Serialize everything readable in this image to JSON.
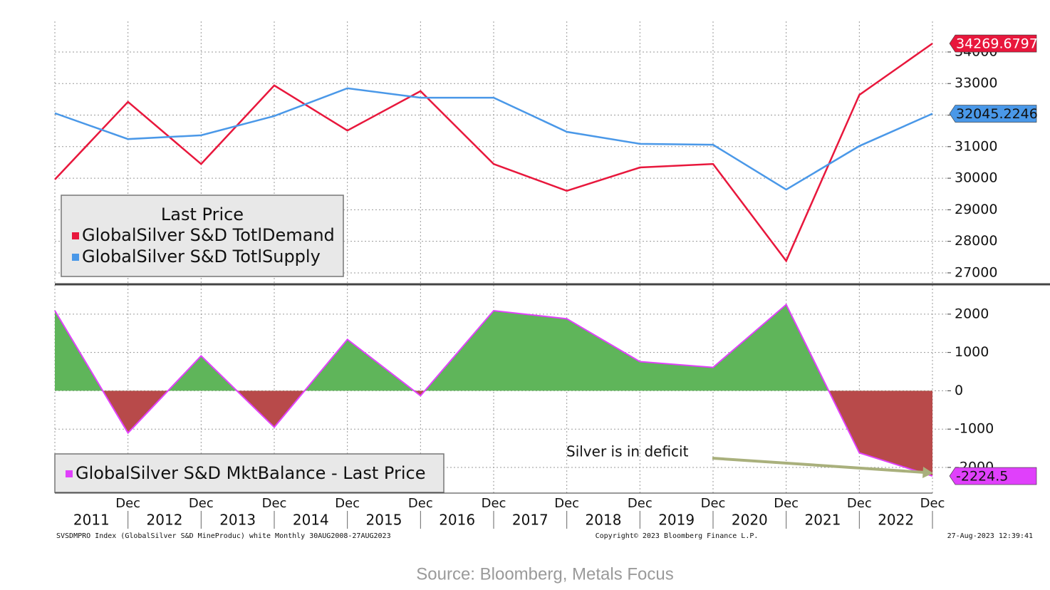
{
  "chart_data": [
    {
      "type": "line",
      "legend_title": "Last Price",
      "series": [
        {
          "name": "GlobalSilver S&D TotlDemand",
          "color": "#e8173c",
          "values": [
            29960,
            32420,
            30450,
            32940,
            31510,
            32760,
            30450,
            29600,
            30340,
            30450,
            27380,
            32640,
            34269.6797
          ]
        },
        {
          "name": "GlobalSilver S&D TotlSupply",
          "color": "#4a98e8",
          "values": [
            32060,
            31240,
            31360,
            31970,
            32850,
            32550,
            32550,
            31470,
            31090,
            31060,
            29640,
            31020,
            32045.2246
          ]
        }
      ],
      "ylim": [
        26660,
        34970
      ],
      "yticks": [
        27000,
        28000,
        29000,
        30000,
        31000,
        32000,
        33000,
        34000
      ],
      "grid": true
    },
    {
      "type": "area",
      "series": [
        {
          "name": "GlobalSilver S&D MktBalance - Last Price",
          "color": "#e040fb",
          "positive_color": "#5fb55a",
          "negative_color": "#b84a4a",
          "values": [
            2090,
            -1100,
            910,
            -950,
            1340,
            -130,
            2090,
            1880,
            760,
            610,
            2250,
            -1620,
            -2224.5
          ]
        }
      ],
      "categories": [
        null,
        "Dec",
        "Dec",
        "Dec",
        "Dec",
        "Dec",
        "Dec",
        "Dec",
        "Dec",
        "Dec",
        "Dec",
        "Dec",
        "Dec"
      ],
      "year_labels": [
        "2011",
        "2012",
        "2013",
        "2014",
        "2015",
        "2016",
        "2017",
        "2018",
        "2019",
        "2020",
        "2021",
        "2022"
      ],
      "ylim": [
        -2670,
        2760
      ],
      "yticks": [
        -2000,
        -1000,
        0,
        1000,
        2000
      ],
      "grid": true,
      "annotation": "Silver is in deficit"
    }
  ],
  "footer": {
    "left": "SVSDMPRO Index (GlobalSilver S&D MineProduc) white  Monthly 30AUG2008-27AUG2023",
    "center": "Copyright© 2023 Bloomberg Finance L.P.",
    "right": "27-Aug-2023 12:39:41",
    "source": "Source: Bloomberg, Metals Focus"
  }
}
